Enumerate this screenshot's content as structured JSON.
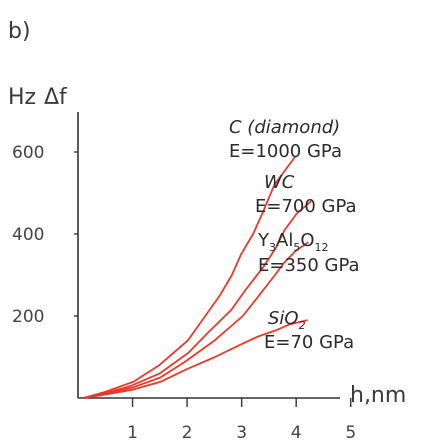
{
  "panel_label": "b)",
  "y_label_unit": "Hz",
  "y_label_symbol": "Δf",
  "x_label": "h,nm",
  "colors": {
    "curve": "#e8392c",
    "axis": "#333333",
    "text": "#2b2b2b"
  },
  "annotations": [
    {
      "name": "diamond-label",
      "lines": [
        "C (diamond)",
        "E=1000 GPa"
      ]
    },
    {
      "name": "wc-label",
      "lines": [
        "WC",
        "E=700 GPa"
      ]
    },
    {
      "name": "yag-label",
      "lines": [
        "Y3Al5O12",
        "E=350 GPa"
      ]
    },
    {
      "name": "sio2-label",
      "lines": [
        "SiO2",
        "E=70 GPa"
      ]
    }
  ],
  "chart_data": {
    "type": "line",
    "title": "",
    "xlabel": "h,nm",
    "ylabel": "Hz Δf",
    "xlim": [
      0,
      5.5
    ],
    "ylim": [
      0,
      700
    ],
    "x_ticks": [
      1,
      2,
      3,
      4,
      5
    ],
    "y_ticks": [
      200,
      400,
      600
    ],
    "grid": false,
    "series": [
      {
        "name": "C (diamond) E=1000 GPa",
        "x": [
          0.1,
          0.5,
          1.0,
          1.5,
          2.0,
          2.3,
          2.6,
          2.8,
          3.0,
          3.2,
          3.4,
          3.6,
          3.8,
          4.0
        ],
        "y": [
          0,
          15,
          40,
          80,
          140,
          190,
          250,
          300,
          350,
          400,
          450,
          520,
          560,
          590
        ]
      },
      {
        "name": "WC E=700 GPa",
        "x": [
          0.1,
          0.5,
          1.0,
          1.5,
          2.0,
          2.4,
          2.8,
          3.1,
          3.4,
          3.6,
          3.8,
          4.0,
          4.3
        ],
        "y": [
          0,
          12,
          30,
          60,
          110,
          160,
          215,
          265,
          320,
          365,
          410,
          450,
          480
        ]
      },
      {
        "name": "Y3Al5O12 E=350 GPa",
        "x": [
          0.1,
          0.5,
          1.0,
          1.5,
          2.0,
          2.5,
          3.0,
          3.3,
          3.6,
          3.8,
          4.0,
          4.2
        ],
        "y": [
          0,
          10,
          25,
          50,
          90,
          140,
          200,
          245,
          300,
          330,
          360,
          380
        ]
      },
      {
        "name": "SiO2 E=70 GPa",
        "x": [
          0.1,
          0.5,
          1.0,
          1.5,
          2.0,
          2.5,
          3.0,
          3.3,
          3.6,
          3.9,
          4.2
        ],
        "y": [
          0,
          8,
          20,
          40,
          70,
          100,
          130,
          150,
          165,
          180,
          190
        ]
      }
    ]
  }
}
